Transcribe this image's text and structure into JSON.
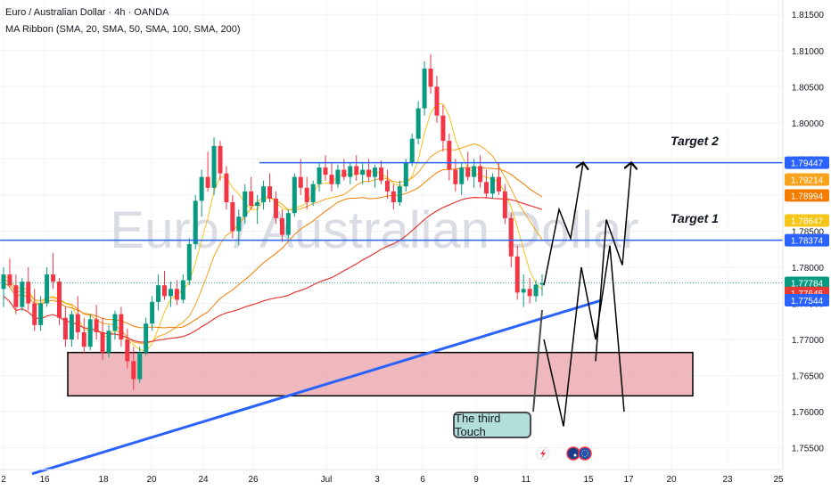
{
  "header": {
    "symbol_line": "Euro / Australian Dollar · 4h · OANDA",
    "indicator_line": "MA Ribbon (SMA, 20, SMA, 50, SMA, 100, SMA, 200)"
  },
  "watermark": "Euro / Australian Dollar",
  "annotations": {
    "target1": "Target 1",
    "target2": "Target 2",
    "callout": "The third Touch"
  },
  "event_icons": [
    "lightning-icon",
    "au-flag-icon",
    "eu-flag-icon"
  ],
  "colors": {
    "up_candle": "#089981",
    "down_candle": "#f23645",
    "trendline": "#2962ff",
    "target_line": "#2962ff",
    "zone_fill": "#e8a0a6",
    "ma20": "#f5c518",
    "ma50": "#f7a21b",
    "ma100": "#f57c00",
    "ma200": "#e53935"
  },
  "chart_data": {
    "type": "candlestick",
    "symbol": "Euro / Australian Dollar",
    "timeframe": "4h",
    "source": "OANDA",
    "x_ticks": [
      "2",
      "16",
      "18",
      "20",
      "24",
      "26",
      "Jul",
      "3",
      "6",
      "9",
      "11",
      "15",
      "17",
      "20",
      "23",
      "25"
    ],
    "y_ticks": [
      "1.81500",
      "1.81000",
      "1.80500",
      "1.80000",
      "1.79500",
      "1.79000",
      "1.78500",
      "1.78000",
      "1.77500",
      "1.77000",
      "1.76500",
      "1.76000",
      "1.75500"
    ],
    "ylim": [
      1.752,
      1.817
    ],
    "price_labels": [
      {
        "value": "1.79447",
        "bg": "#2962ff"
      },
      {
        "value": "1.79214",
        "bg": "#f7a21b"
      },
      {
        "value": "1.78994",
        "bg": "#f57c00"
      },
      {
        "value": "1.78647",
        "bg": "#f5c518"
      },
      {
        "value": "1.78374",
        "bg": "#2962ff"
      },
      {
        "value": "1.77784",
        "bg": "#089981"
      },
      {
        "value": "1.77645",
        "bg": "#e53935"
      },
      {
        "value": "1.77544",
        "bg": "#2962ff"
      }
    ],
    "levels": {
      "target2": 1.79447,
      "target1": 1.78374,
      "current": 1.77784,
      "zone_top": 1.7682,
      "zone_bottom": 1.7622
    },
    "trendline": {
      "start": 1.7514,
      "end": 1.77544
    },
    "price_path": [
      1.77,
      1.758,
      1.78,
      1.77,
      1.783,
      1.76,
      1.786,
      1.765,
      1.792,
      1.766
    ],
    "ohlc": [
      [
        1.777,
        1.78,
        1.7745,
        1.779
      ],
      [
        1.779,
        1.7812,
        1.7772,
        1.7775
      ],
      [
        1.7775,
        1.779,
        1.7735,
        1.7745
      ],
      [
        1.7745,
        1.7785,
        1.774,
        1.778
      ],
      [
        1.778,
        1.78,
        1.774,
        1.775
      ],
      [
        1.775,
        1.777,
        1.7712,
        1.772
      ],
      [
        1.772,
        1.776,
        1.7712,
        1.775
      ],
      [
        1.775,
        1.78,
        1.7745,
        1.779
      ],
      [
        1.779,
        1.782,
        1.777,
        1.778
      ],
      [
        1.778,
        1.7785,
        1.772,
        1.773
      ],
      [
        1.773,
        1.7745,
        1.769,
        1.77
      ],
      [
        1.77,
        1.774,
        1.769,
        1.7735
      ],
      [
        1.7735,
        1.776,
        1.77,
        1.771
      ],
      [
        1.771,
        1.773,
        1.768,
        1.769
      ],
      [
        1.769,
        1.7735,
        1.7685,
        1.7728
      ],
      [
        1.7728,
        1.7748,
        1.77,
        1.771
      ],
      [
        1.771,
        1.773,
        1.7672,
        1.7682
      ],
      [
        1.7682,
        1.772,
        1.7675,
        1.7712
      ],
      [
        1.7712,
        1.774,
        1.77,
        1.7735
      ],
      [
        1.7735,
        1.7745,
        1.769,
        1.77
      ],
      [
        1.77,
        1.7715,
        1.766,
        1.767
      ],
      [
        1.767,
        1.769,
        1.763,
        1.7645
      ],
      [
        1.7645,
        1.769,
        1.764,
        1.7682
      ],
      [
        1.7682,
        1.773,
        1.7678,
        1.7722
      ],
      [
        1.7722,
        1.776,
        1.7712,
        1.7752
      ],
      [
        1.7752,
        1.779,
        1.774,
        1.7775
      ],
      [
        1.7775,
        1.7795,
        1.7755,
        1.776
      ],
      [
        1.776,
        1.778,
        1.7745,
        1.777
      ],
      [
        1.777,
        1.7782,
        1.7748,
        1.7755
      ],
      [
        1.7755,
        1.779,
        1.775,
        1.7782
      ],
      [
        1.7782,
        1.784,
        1.7775,
        1.7832
      ],
      [
        1.7832,
        1.79,
        1.7825,
        1.7892
      ],
      [
        1.7892,
        1.7935,
        1.787,
        1.7925
      ],
      [
        1.7925,
        1.796,
        1.7905,
        1.791
      ],
      [
        1.791,
        1.798,
        1.79,
        1.7968
      ],
      [
        1.7968,
        1.7975,
        1.792,
        1.793
      ],
      [
        1.793,
        1.794,
        1.788,
        1.789
      ],
      [
        1.789,
        1.79,
        1.784,
        1.785
      ],
      [
        1.785,
        1.788,
        1.783,
        1.787
      ],
      [
        1.787,
        1.7915,
        1.786,
        1.7905
      ],
      [
        1.7905,
        1.7925,
        1.788,
        1.7885
      ],
      [
        1.7885,
        1.79,
        1.786,
        1.789
      ],
      [
        1.789,
        1.792,
        1.788,
        1.7912
      ],
      [
        1.7912,
        1.793,
        1.789,
        1.7895
      ],
      [
        1.7895,
        1.7905,
        1.786,
        1.7868
      ],
      [
        1.7868,
        1.788,
        1.7835,
        1.7845
      ],
      [
        1.7845,
        1.788,
        1.784,
        1.7875
      ],
      [
        1.7875,
        1.793,
        1.787,
        1.7925
      ],
      [
        1.7925,
        1.795,
        1.79,
        1.791
      ],
      [
        1.791,
        1.7925,
        1.788,
        1.789
      ],
      [
        1.789,
        1.792,
        1.7885,
        1.7915
      ],
      [
        1.7915,
        1.7945,
        1.7905,
        1.7938
      ],
      [
        1.7938,
        1.7955,
        1.792,
        1.7928
      ],
      [
        1.7928,
        1.7945,
        1.7905,
        1.7915
      ],
      [
        1.7915,
        1.7942,
        1.791,
        1.7935
      ],
      [
        1.7935,
        1.795,
        1.792,
        1.7925
      ],
      [
        1.7925,
        1.7945,
        1.7915,
        1.794
      ],
      [
        1.794,
        1.7955,
        1.792,
        1.7928
      ],
      [
        1.7928,
        1.7945,
        1.7915,
        1.7935
      ],
      [
        1.7935,
        1.795,
        1.7918,
        1.7925
      ],
      [
        1.7925,
        1.7942,
        1.791,
        1.7938
      ],
      [
        1.7938,
        1.7948,
        1.7915,
        1.792
      ],
      [
        1.792,
        1.7935,
        1.7895,
        1.7905
      ],
      [
        1.7905,
        1.7915,
        1.788,
        1.789
      ],
      [
        1.789,
        1.792,
        1.7885,
        1.7912
      ],
      [
        1.7912,
        1.795,
        1.7905,
        1.7945
      ],
      [
        1.7945,
        1.7985,
        1.794,
        1.7978
      ],
      [
        1.7978,
        1.803,
        1.797,
        1.802
      ],
      [
        1.802,
        1.8085,
        1.801,
        1.8075
      ],
      [
        1.8075,
        1.8095,
        1.804,
        1.805
      ],
      [
        1.805,
        1.8065,
        1.8,
        1.801
      ],
      [
        1.801,
        1.8025,
        1.796,
        1.7975
      ],
      [
        1.7975,
        1.7985,
        1.792,
        1.7935
      ],
      [
        1.7935,
        1.795,
        1.7905,
        1.7915
      ],
      [
        1.7915,
        1.7945,
        1.79,
        1.7938
      ],
      [
        1.7938,
        1.796,
        1.792,
        1.7925
      ],
      [
        1.7925,
        1.795,
        1.791,
        1.794
      ],
      [
        1.794,
        1.7955,
        1.791,
        1.7918
      ],
      [
        1.7918,
        1.7935,
        1.7895,
        1.7902
      ],
      [
        1.7902,
        1.793,
        1.7895,
        1.7925
      ],
      [
        1.7925,
        1.7945,
        1.79,
        1.7905
      ],
      [
        1.7905,
        1.7915,
        1.786,
        1.7868
      ],
      [
        1.7868,
        1.7875,
        1.78,
        1.7815
      ],
      [
        1.7815,
        1.783,
        1.7755,
        1.7765
      ],
      [
        1.7765,
        1.779,
        1.7745,
        1.777
      ],
      [
        1.777,
        1.7785,
        1.775,
        1.776
      ],
      [
        1.776,
        1.7782,
        1.7752,
        1.7776
      ],
      [
        1.7776,
        1.779,
        1.776,
        1.7778
      ]
    ]
  }
}
